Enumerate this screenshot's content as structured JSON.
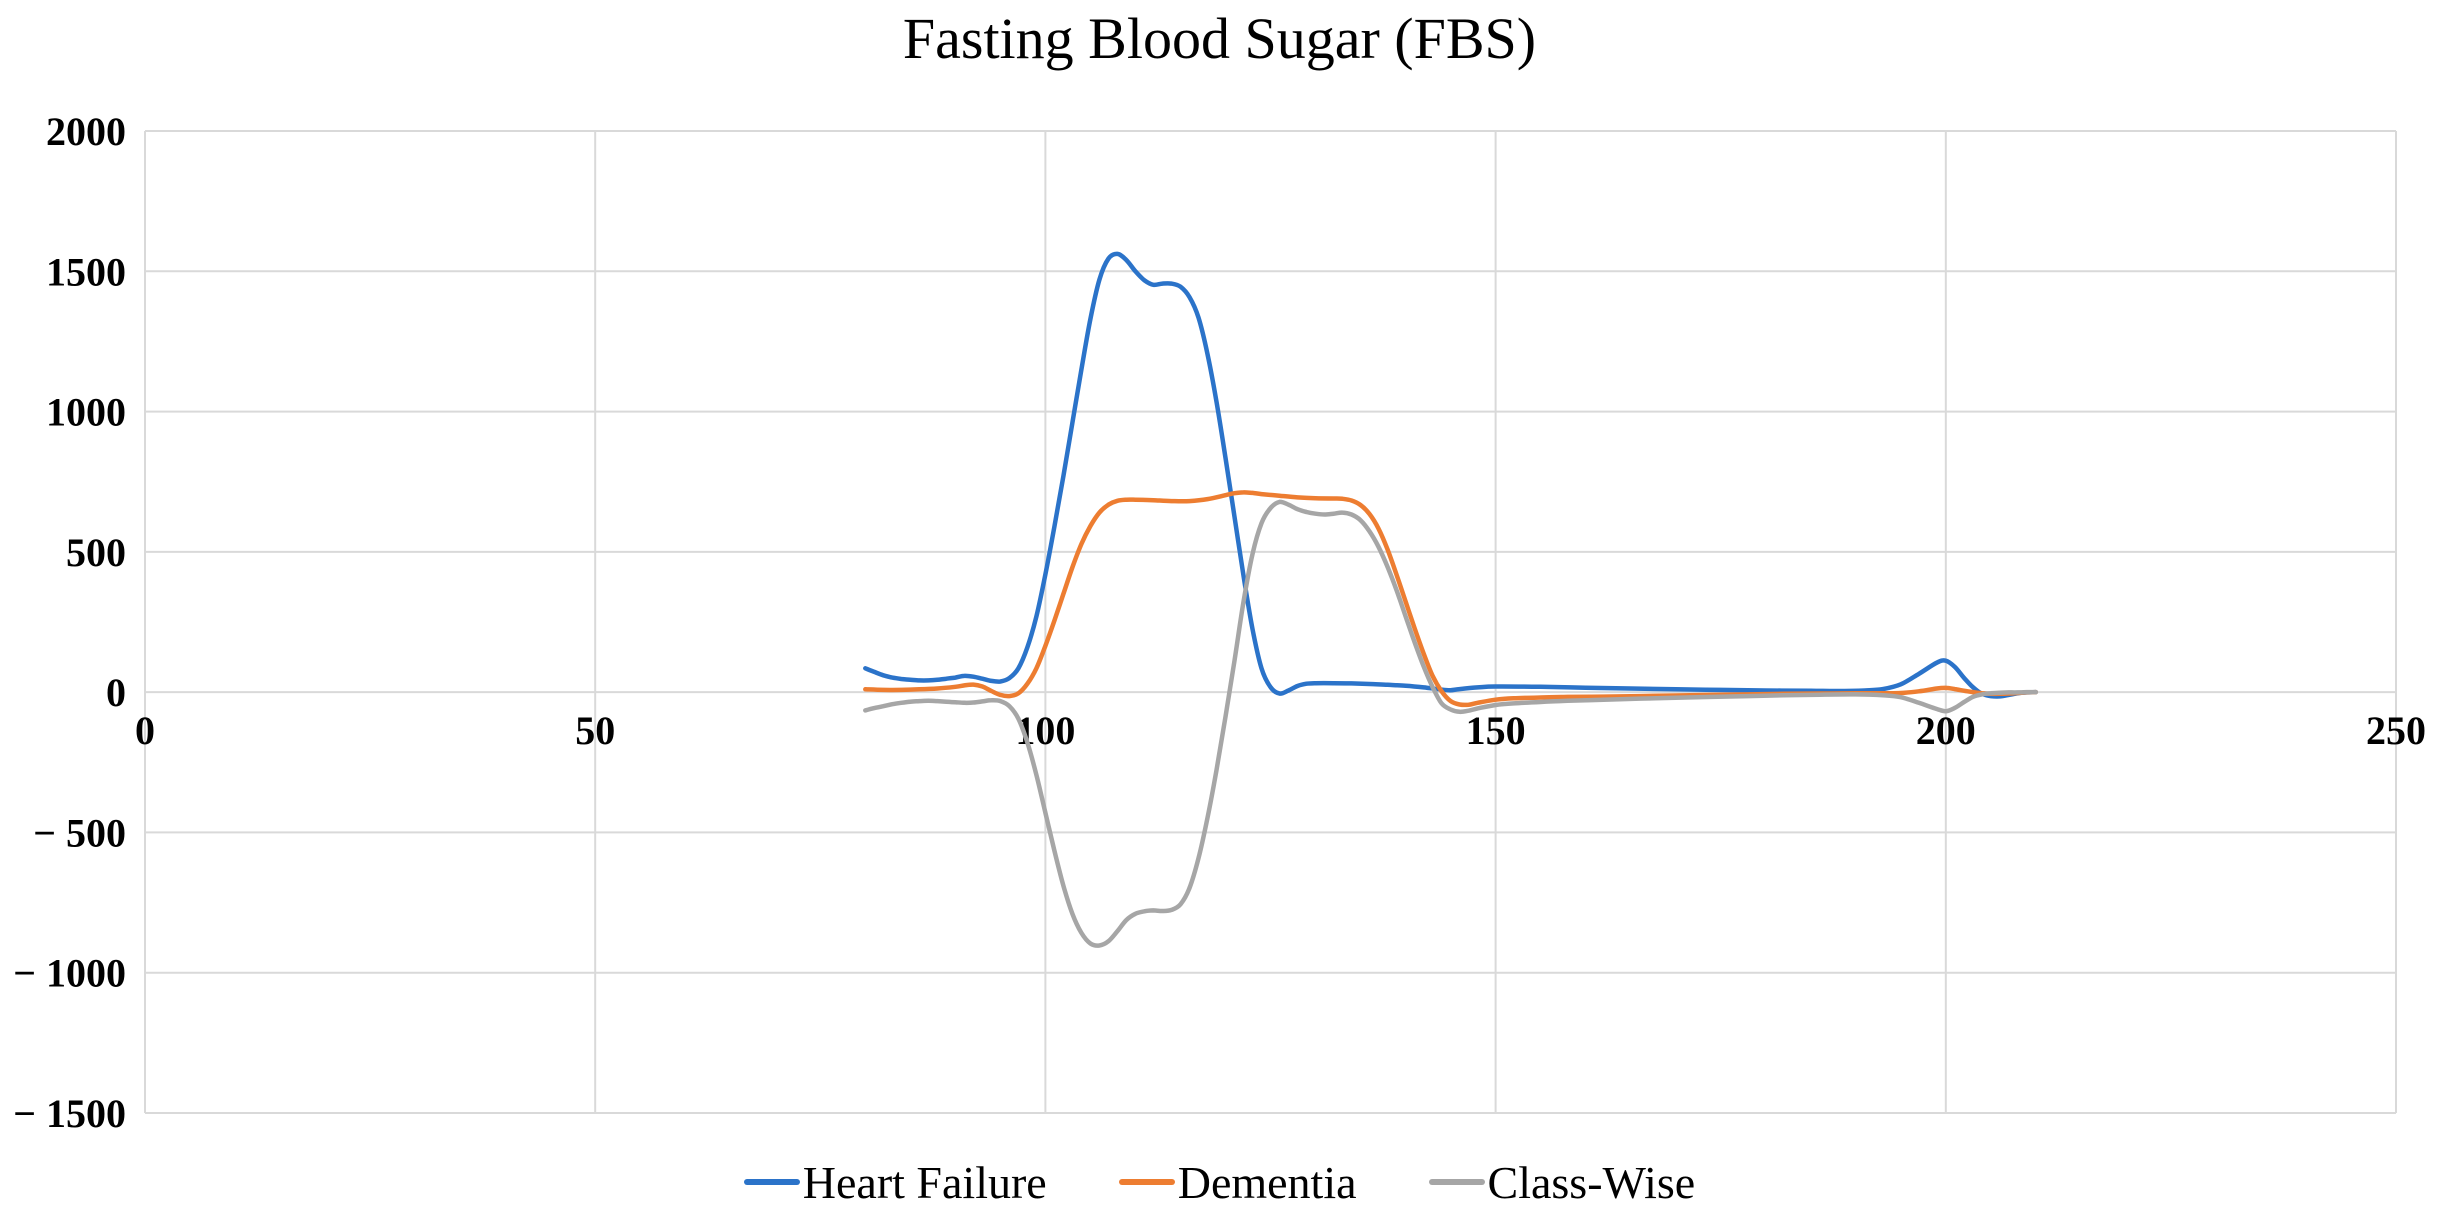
{
  "chart_data": {
    "type": "line",
    "title": "Fasting Blood Sugar (FBS)",
    "xlabel": "",
    "ylabel": "",
    "xlim": [
      0,
      250
    ],
    "ylim": [
      -1500,
      2000
    ],
    "grid": true,
    "smooth": true,
    "legend_position": "bottom",
    "background_color": "#FFFFFF",
    "gridline_color": "#D9D9D9",
    "text_color": "#000000",
    "x_ticks": [
      0,
      50,
      100,
      150,
      200,
      250
    ],
    "x_tick_labels": [
      "0",
      "50",
      "100",
      "150",
      "200",
      "250"
    ],
    "y_ticks": [
      2000,
      1500,
      1000,
      500,
      0,
      -500,
      -1000,
      -1500
    ],
    "y_tick_labels": [
      "2000",
      "1500",
      "1000",
      "500",
      "0",
      "− 500",
      "− 1000",
      "− 1500"
    ],
    "series": [
      {
        "name": "Heart Failure",
        "color": "#2B73C9",
        "points": [
          [
            80,
            85
          ],
          [
            81,
            72
          ],
          [
            82,
            60
          ],
          [
            83,
            52
          ],
          [
            84,
            47
          ],
          [
            85,
            44
          ],
          [
            86,
            42
          ],
          [
            87,
            42
          ],
          [
            88,
            44
          ],
          [
            89,
            48
          ],
          [
            90,
            52
          ],
          [
            91,
            58
          ],
          [
            92,
            55
          ],
          [
            93,
            48
          ],
          [
            94,
            40
          ],
          [
            95,
            38
          ],
          [
            96,
            50
          ],
          [
            97,
            85
          ],
          [
            98,
            160
          ],
          [
            99,
            270
          ],
          [
            100,
            420
          ],
          [
            101,
            590
          ],
          [
            102,
            770
          ],
          [
            103,
            960
          ],
          [
            104,
            1150
          ],
          [
            105,
            1330
          ],
          [
            106,
            1470
          ],
          [
            107,
            1545
          ],
          [
            108,
            1562
          ],
          [
            109,
            1540
          ],
          [
            110,
            1500
          ],
          [
            111,
            1468
          ],
          [
            112,
            1452
          ],
          [
            113,
            1456
          ],
          [
            114,
            1456
          ],
          [
            115,
            1445
          ],
          [
            116,
            1408
          ],
          [
            117,
            1335
          ],
          [
            118,
            1205
          ],
          [
            119,
            1035
          ],
          [
            120,
            835
          ],
          [
            121,
            625
          ],
          [
            122,
            415
          ],
          [
            123,
            225
          ],
          [
            124,
            85
          ],
          [
            125,
            18
          ],
          [
            126,
            -5
          ],
          [
            127,
            6
          ],
          [
            128,
            22
          ],
          [
            129,
            30
          ],
          [
            130,
            32
          ],
          [
            132,
            32
          ],
          [
            134,
            31
          ],
          [
            136,
            29
          ],
          [
            138,
            26
          ],
          [
            140,
            23
          ],
          [
            142,
            17
          ],
          [
            144,
            9
          ],
          [
            145,
            7
          ],
          [
            146,
            11
          ],
          [
            148,
            17
          ],
          [
            150,
            20
          ],
          [
            155,
            19
          ],
          [
            160,
            16
          ],
          [
            165,
            13
          ],
          [
            170,
            10
          ],
          [
            175,
            8
          ],
          [
            180,
            6
          ],
          [
            185,
            5
          ],
          [
            188,
            4
          ],
          [
            191,
            6
          ],
          [
            193,
            11
          ],
          [
            195,
            28
          ],
          [
            197,
            65
          ],
          [
            199,
            105
          ],
          [
            200,
            112
          ],
          [
            201,
            90
          ],
          [
            202,
            52
          ],
          [
            203,
            18
          ],
          [
            204,
            -6
          ],
          [
            205,
            -14
          ],
          [
            206,
            -15
          ],
          [
            207,
            -10
          ],
          [
            208,
            -4
          ],
          [
            209,
            -1
          ],
          [
            210,
            0
          ]
        ]
      },
      {
        "name": "Dementia",
        "color": "#ED7D31",
        "points": [
          [
            80,
            10
          ],
          [
            82,
            8
          ],
          [
            84,
            8
          ],
          [
            86,
            10
          ],
          [
            88,
            13
          ],
          [
            90,
            19
          ],
          [
            91,
            24
          ],
          [
            92,
            27
          ],
          [
            93,
            20
          ],
          [
            94,
            4
          ],
          [
            95,
            -10
          ],
          [
            96,
            -14
          ],
          [
            97,
            -4
          ],
          [
            98,
            30
          ],
          [
            99,
            85
          ],
          [
            100,
            165
          ],
          [
            101,
            255
          ],
          [
            102,
            350
          ],
          [
            103,
            445
          ],
          [
            104,
            528
          ],
          [
            105,
            592
          ],
          [
            106,
            640
          ],
          [
            107,
            668
          ],
          [
            108,
            682
          ],
          [
            109,
            686
          ],
          [
            110,
            686
          ],
          [
            112,
            684
          ],
          [
            114,
            681
          ],
          [
            116,
            681
          ],
          [
            118,
            688
          ],
          [
            120,
            702
          ],
          [
            121,
            709
          ],
          [
            122,
            712
          ],
          [
            123,
            710
          ],
          [
            124,
            706
          ],
          [
            126,
            700
          ],
          [
            128,
            694
          ],
          [
            130,
            691
          ],
          [
            132,
            690
          ],
          [
            133,
            689
          ],
          [
            134,
            683
          ],
          [
            135,
            667
          ],
          [
            136,
            635
          ],
          [
            137,
            583
          ],
          [
            138,
            508
          ],
          [
            139,
            418
          ],
          [
            140,
            323
          ],
          [
            141,
            228
          ],
          [
            142,
            138
          ],
          [
            143,
            58
          ],
          [
            144,
            3
          ],
          [
            145,
            -32
          ],
          [
            146,
            -44
          ],
          [
            147,
            -45
          ],
          [
            148,
            -38
          ],
          [
            150,
            -27
          ],
          [
            152,
            -22
          ],
          [
            155,
            -19
          ],
          [
            158,
            -17
          ],
          [
            162,
            -16
          ],
          [
            166,
            -14
          ],
          [
            170,
            -12
          ],
          [
            174,
            -10
          ],
          [
            178,
            -8
          ],
          [
            182,
            -6
          ],
          [
            186,
            -5
          ],
          [
            190,
            -4
          ],
          [
            193,
            -4
          ],
          [
            195,
            -3
          ],
          [
            197,
            3
          ],
          [
            199,
            13
          ],
          [
            200,
            15
          ],
          [
            201,
            11
          ],
          [
            202,
            5
          ],
          [
            203,
            0
          ],
          [
            204,
            -4
          ],
          [
            205,
            -6
          ],
          [
            206,
            -6
          ],
          [
            207,
            -5
          ],
          [
            208,
            -3
          ],
          [
            209,
            -1
          ],
          [
            210,
            0
          ]
        ]
      },
      {
        "name": "Class-Wise",
        "color": "#A6A6A6",
        "points": [
          [
            80,
            -65
          ],
          [
            81,
            -57
          ],
          [
            82,
            -50
          ],
          [
            83,
            -43
          ],
          [
            84,
            -38
          ],
          [
            85,
            -34
          ],
          [
            86,
            -32
          ],
          [
            87,
            -31
          ],
          [
            88,
            -32
          ],
          [
            89,
            -34
          ],
          [
            90,
            -36
          ],
          [
            91,
            -38
          ],
          [
            92,
            -37
          ],
          [
            93,
            -33
          ],
          [
            94,
            -29
          ],
          [
            95,
            -32
          ],
          [
            96,
            -50
          ],
          [
            97,
            -95
          ],
          [
            98,
            -180
          ],
          [
            99,
            -295
          ],
          [
            100,
            -430
          ],
          [
            101,
            -565
          ],
          [
            102,
            -690
          ],
          [
            103,
            -790
          ],
          [
            104,
            -858
          ],
          [
            105,
            -896
          ],
          [
            106,
            -903
          ],
          [
            107,
            -888
          ],
          [
            108,
            -852
          ],
          [
            109,
            -812
          ],
          [
            110,
            -790
          ],
          [
            111,
            -781
          ],
          [
            112,
            -778
          ],
          [
            113,
            -780
          ],
          [
            114,
            -776
          ],
          [
            115,
            -756
          ],
          [
            116,
            -698
          ],
          [
            117,
            -592
          ],
          [
            118,
            -448
          ],
          [
            119,
            -278
          ],
          [
            120,
            -88
          ],
          [
            121,
            112
          ],
          [
            122,
            322
          ],
          [
            123,
            492
          ],
          [
            124,
            602
          ],
          [
            125,
            656
          ],
          [
            126,
            678
          ],
          [
            127,
            668
          ],
          [
            128,
            652
          ],
          [
            129,
            642
          ],
          [
            130,
            636
          ],
          [
            131,
            633
          ],
          [
            132,
            636
          ],
          [
            133,
            640
          ],
          [
            134,
            633
          ],
          [
            135,
            613
          ],
          [
            136,
            573
          ],
          [
            137,
            518
          ],
          [
            138,
            446
          ],
          [
            139,
            363
          ],
          [
            140,
            270
          ],
          [
            141,
            178
          ],
          [
            142,
            92
          ],
          [
            143,
            18
          ],
          [
            144,
            -40
          ],
          [
            145,
            -62
          ],
          [
            146,
            -70
          ],
          [
            147,
            -66
          ],
          [
            148,
            -58
          ],
          [
            150,
            -46
          ],
          [
            152,
            -40
          ],
          [
            155,
            -35
          ],
          [
            158,
            -31
          ],
          [
            162,
            -27
          ],
          [
            166,
            -23
          ],
          [
            170,
            -20
          ],
          [
            174,
            -17
          ],
          [
            178,
            -14
          ],
          [
            182,
            -11
          ],
          [
            186,
            -9
          ],
          [
            190,
            -8
          ],
          [
            193,
            -11
          ],
          [
            195,
            -18
          ],
          [
            197,
            -38
          ],
          [
            199,
            -60
          ],
          [
            200,
            -68
          ],
          [
            201,
            -56
          ],
          [
            202,
            -36
          ],
          [
            203,
            -17
          ],
          [
            204,
            -8
          ],
          [
            205,
            -4
          ],
          [
            206,
            -2
          ],
          [
            207,
            -1
          ],
          [
            208,
            -1
          ],
          [
            209,
            0
          ],
          [
            210,
            0
          ]
        ]
      }
    ]
  }
}
